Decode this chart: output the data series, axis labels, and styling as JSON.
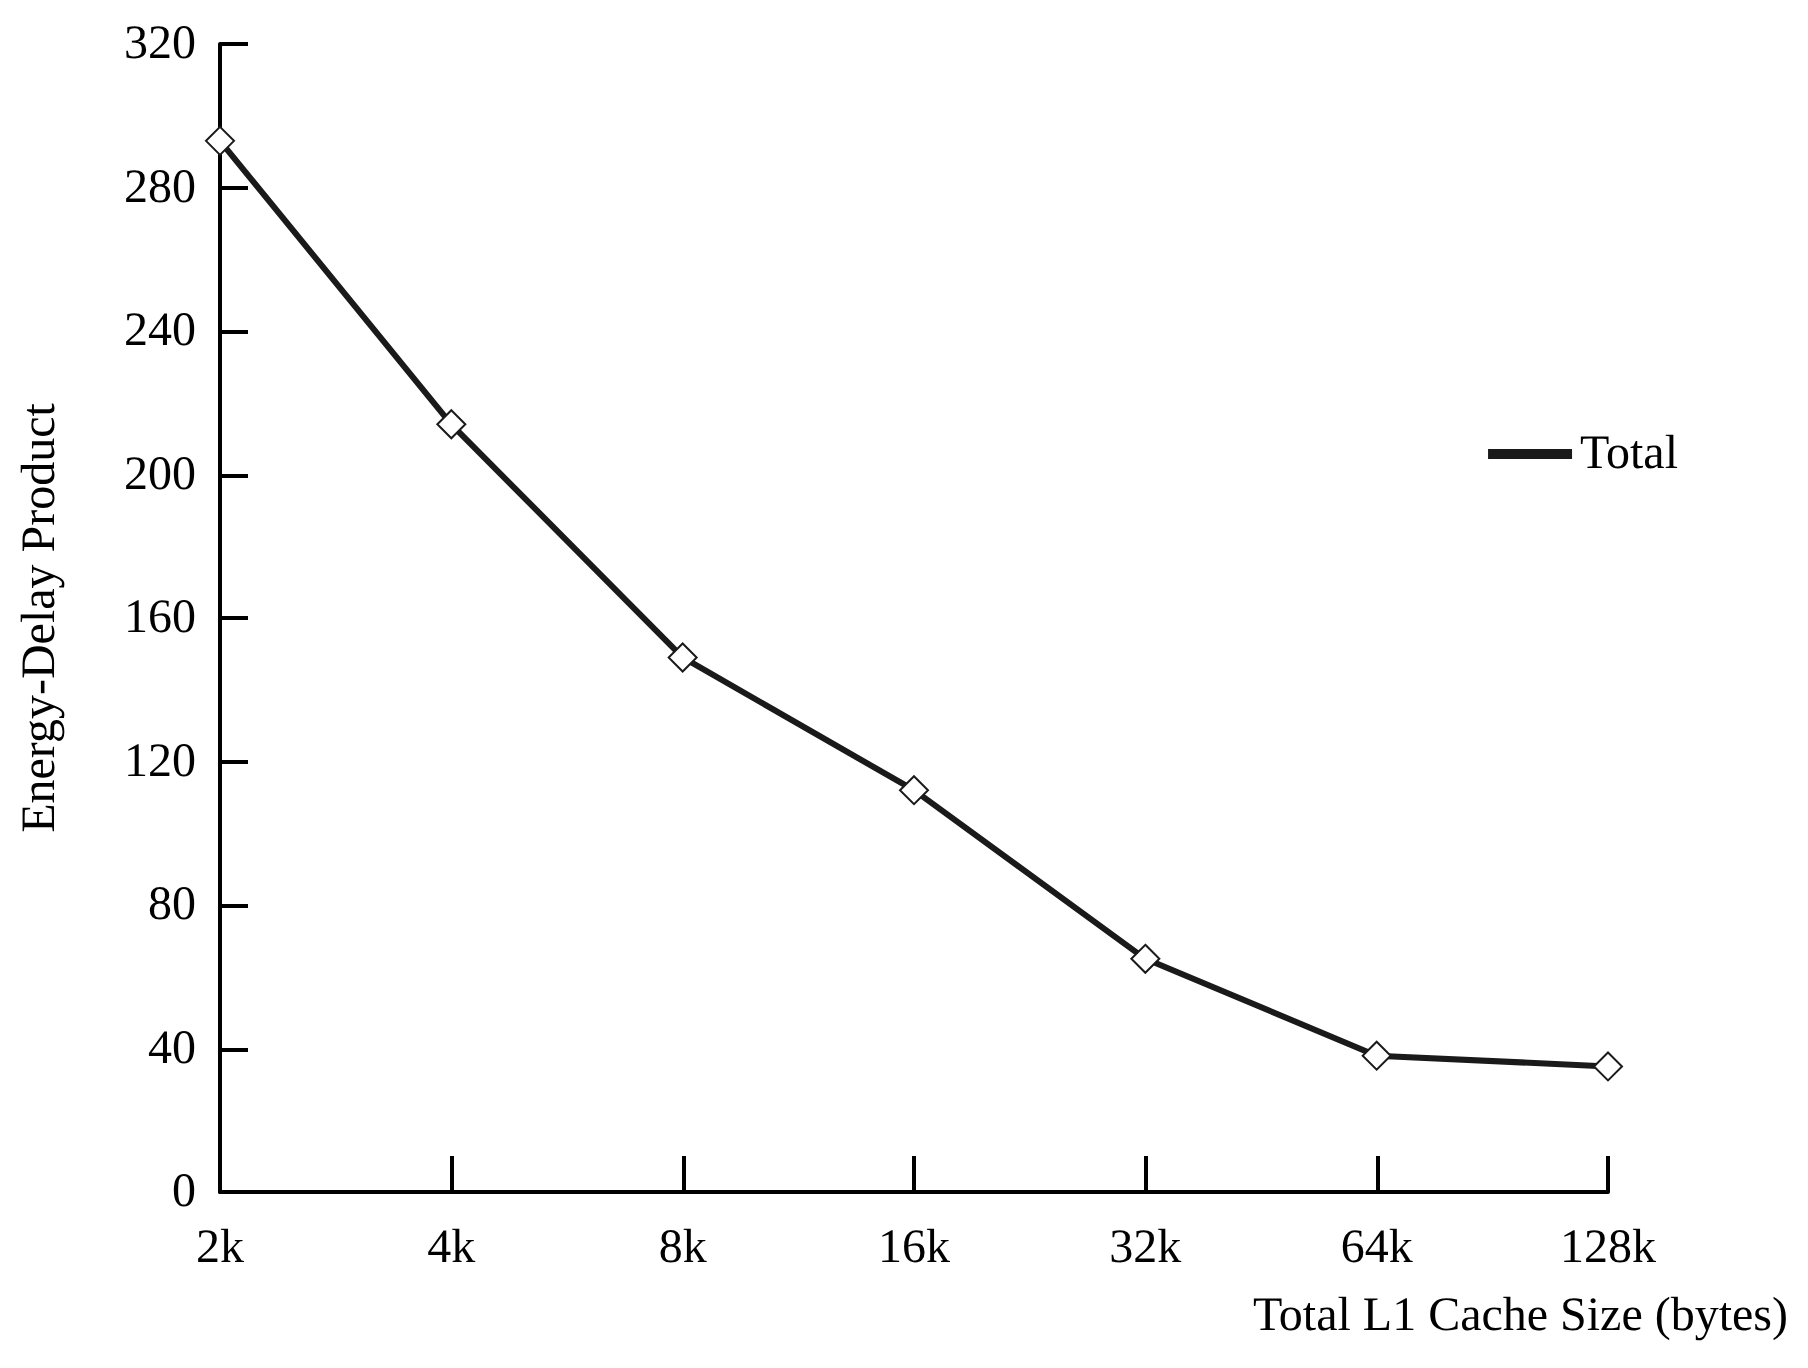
{
  "chart_data": {
    "type": "line",
    "xlabel": "Total L1 Cache Size (bytes)",
    "ylabel": "Energy-Delay Product",
    "categories": [
      "2k",
      "4k",
      "8k",
      "16k",
      "32k",
      "64k",
      "128k"
    ],
    "series": [
      {
        "name": "Total",
        "color": "#1a1a1a",
        "values": [
          293,
          214,
          149,
          112,
          65,
          38,
          35
        ]
      }
    ],
    "ylim": [
      0,
      320
    ],
    "yticks": [
      0,
      40,
      80,
      120,
      160,
      200,
      240,
      280,
      320
    ],
    "grid": false,
    "legend": "right",
    "marker": "diamond",
    "line_style": "solid"
  }
}
